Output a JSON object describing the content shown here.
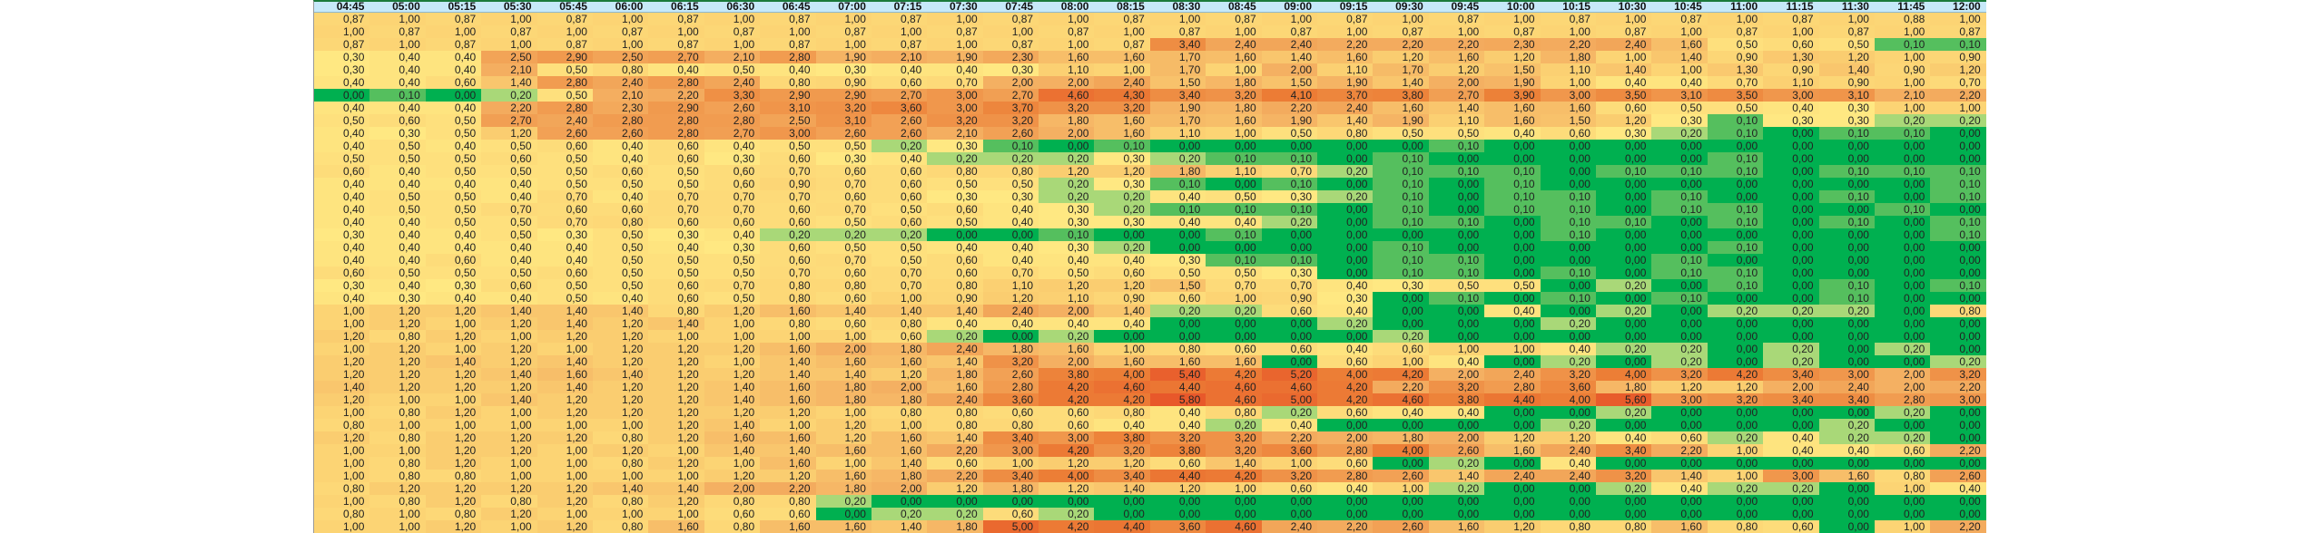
{
  "columns": [
    "04:45",
    "05:00",
    "05:15",
    "05:30",
    "05:45",
    "06:00",
    "06:15",
    "06:30",
    "06:45",
    "07:00",
    "07:15",
    "07:30",
    "07:45",
    "08:00",
    "08:15",
    "08:30",
    "08:45",
    "09:00",
    "09:15",
    "09:30",
    "09:45",
    "10:00",
    "10:15",
    "10:30",
    "10:45",
    "11:00",
    "11:15",
    "11:30",
    "11:45",
    "12:00"
  ],
  "rows": [
    [
      "0,87",
      "1,00",
      "0,87",
      "1,00",
      "0,87",
      "1,00",
      "0,87",
      "1,00",
      "0,87",
      "1,00",
      "0,87",
      "1,00",
      "0,87",
      "1,00",
      "0,87",
      "1,00",
      "0,87",
      "1,00",
      "0,87",
      "1,00",
      "0,87",
      "1,00",
      "0,87",
      "1,00",
      "0,87",
      "1,00",
      "0,87",
      "1,00",
      "0,88",
      "1,00"
    ],
    [
      "1,00",
      "0,87",
      "1,00",
      "0,87",
      "1,00",
      "0,87",
      "1,00",
      "0,87",
      "1,00",
      "0,87",
      "1,00",
      "0,87",
      "1,00",
      "0,87",
      "1,00",
      "0,87",
      "1,00",
      "0,87",
      "1,00",
      "0,87",
      "1,00",
      "0,87",
      "1,00",
      "0,87",
      "1,00",
      "0,87",
      "1,00",
      "0,87",
      "1,00",
      "0,87"
    ],
    [
      "0,87",
      "1,00",
      "0,87",
      "1,00",
      "0,87",
      "1,00",
      "0,87",
      "1,00",
      "0,87",
      "1,00",
      "0,87",
      "1,00",
      "0,87",
      "1,00",
      "0,87",
      "3,40",
      "2,40",
      "2,40",
      "2,20",
      "2,20",
      "2,20",
      "2,30",
      "2,20",
      "2,40",
      "1,60",
      "0,50",
      "0,60",
      "0,50",
      "0,10",
      "0,10"
    ],
    [
      "0,30",
      "0,40",
      "0,40",
      "2,50",
      "2,90",
      "2,50",
      "2,70",
      "2,10",
      "2,80",
      "1,90",
      "2,10",
      "1,90",
      "2,30",
      "1,60",
      "1,60",
      "1,70",
      "1,60",
      "1,40",
      "1,60",
      "1,20",
      "1,60",
      "1,20",
      "1,80",
      "1,00",
      "1,40",
      "0,90",
      "1,30",
      "1,20",
      "1,00",
      "0,90"
    ],
    [
      "0,30",
      "0,40",
      "0,40",
      "2,10",
      "0,50",
      "0,80",
      "0,40",
      "0,50",
      "0,40",
      "0,30",
      "0,40",
      "0,40",
      "0,30",
      "1,10",
      "1,00",
      "1,70",
      "1,00",
      "2,00",
      "1,10",
      "1,70",
      "1,20",
      "1,50",
      "1,10",
      "1,40",
      "1,00",
      "1,30",
      "0,90",
      "1,40",
      "0,90",
      "1,20"
    ],
    [
      "0,40",
      "0,40",
      "0,60",
      "1,40",
      "2,80",
      "2,40",
      "2,80",
      "2,40",
      "0,80",
      "0,90",
      "0,60",
      "0,70",
      "2,00",
      "2,00",
      "2,40",
      "1,50",
      "1,80",
      "1,50",
      "1,90",
      "1,40",
      "2,00",
      "1,90",
      "1,00",
      "0,40",
      "0,40",
      "0,70",
      "1,10",
      "0,90",
      "1,00",
      "0,70"
    ],
    [
      "0,00",
      "0,10",
      "0,00",
      "0,20",
      "0,50",
      "2,10",
      "2,20",
      "3,30",
      "2,90",
      "2,90",
      "2,70",
      "3,00",
      "2,70",
      "4,60",
      "4,30",
      "3,40",
      "3,20",
      "4,10",
      "3,70",
      "3,80",
      "2,70",
      "3,90",
      "3,00",
      "3,50",
      "3,10",
      "3,50",
      "3,00",
      "3,10",
      "2,10",
      "2,20"
    ],
    [
      "0,40",
      "0,40",
      "0,40",
      "2,20",
      "2,80",
      "2,30",
      "2,90",
      "2,60",
      "3,10",
      "3,20",
      "3,60",
      "3,00",
      "3,70",
      "3,20",
      "3,20",
      "1,90",
      "1,80",
      "2,20",
      "2,40",
      "1,60",
      "1,40",
      "1,60",
      "1,60",
      "0,60",
      "0,50",
      "0,50",
      "0,40",
      "0,30",
      "1,00",
      "1,00"
    ],
    [
      "0,50",
      "0,60",
      "0,50",
      "2,70",
      "2,40",
      "2,80",
      "2,80",
      "2,80",
      "2,50",
      "3,10",
      "2,60",
      "3,20",
      "3,20",
      "1,80",
      "1,60",
      "1,70",
      "1,60",
      "1,90",
      "1,40",
      "1,90",
      "1,10",
      "1,60",
      "1,50",
      "1,20",
      "0,30",
      "0,10",
      "0,30",
      "0,30",
      "0,20",
      "0,20"
    ],
    [
      "0,40",
      "0,30",
      "0,50",
      "1,20",
      "2,60",
      "2,60",
      "2,80",
      "2,70",
      "3,00",
      "2,60",
      "2,60",
      "2,10",
      "2,60",
      "2,00",
      "1,60",
      "1,10",
      "1,00",
      "0,50",
      "0,80",
      "0,50",
      "0,50",
      "0,40",
      "0,60",
      "0,30",
      "0,20",
      "0,10",
      "0,00",
      "0,10",
      "0,10",
      "0,00"
    ],
    [
      "0,40",
      "0,50",
      "0,40",
      "0,50",
      "0,60",
      "0,40",
      "0,60",
      "0,40",
      "0,50",
      "0,50",
      "0,20",
      "0,30",
      "0,10",
      "0,00",
      "0,10",
      "0,00",
      "0,00",
      "0,00",
      "0,00",
      "0,00",
      "0,10",
      "0,00",
      "0,00",
      "0,00",
      "0,00",
      "0,00",
      "0,00",
      "0,00",
      "0,00",
      "0,00"
    ],
    [
      "0,50",
      "0,50",
      "0,50",
      "0,60",
      "0,50",
      "0,40",
      "0,60",
      "0,30",
      "0,60",
      "0,30",
      "0,40",
      "0,20",
      "0,20",
      "0,20",
      "0,30",
      "0,20",
      "0,10",
      "0,10",
      "0,00",
      "0,10",
      "0,00",
      "0,00",
      "0,00",
      "0,00",
      "0,00",
      "0,10",
      "0,00",
      "0,00",
      "0,00",
      "0,00"
    ],
    [
      "0,60",
      "0,40",
      "0,50",
      "0,50",
      "0,50",
      "0,60",
      "0,50",
      "0,60",
      "0,70",
      "0,60",
      "0,60",
      "0,80",
      "0,80",
      "1,20",
      "1,20",
      "1,80",
      "1,10",
      "0,70",
      "0,20",
      "0,10",
      "0,10",
      "0,10",
      "0,00",
      "0,10",
      "0,10",
      "0,10",
      "0,00",
      "0,10",
      "0,10",
      "0,10"
    ],
    [
      "0,40",
      "0,40",
      "0,40",
      "0,40",
      "0,50",
      "0,50",
      "0,50",
      "0,60",
      "0,90",
      "0,70",
      "0,60",
      "0,50",
      "0,50",
      "0,20",
      "0,30",
      "0,10",
      "0,00",
      "0,10",
      "0,00",
      "0,10",
      "0,00",
      "0,10",
      "0,00",
      "0,00",
      "0,00",
      "0,00",
      "0,00",
      "0,00",
      "0,00",
      "0,10"
    ],
    [
      "0,40",
      "0,50",
      "0,50",
      "0,40",
      "0,70",
      "0,40",
      "0,70",
      "0,70",
      "0,70",
      "0,60",
      "0,60",
      "0,30",
      "0,30",
      "0,20",
      "0,20",
      "0,40",
      "0,50",
      "0,30",
      "0,20",
      "0,10",
      "0,00",
      "0,10",
      "0,10",
      "0,00",
      "0,10",
      "0,00",
      "0,00",
      "0,10",
      "0,00",
      "0,10"
    ],
    [
      "0,40",
      "0,50",
      "0,50",
      "0,70",
      "0,60",
      "0,60",
      "0,70",
      "0,70",
      "0,60",
      "0,70",
      "0,50",
      "0,60",
      "0,40",
      "0,30",
      "0,20",
      "0,10",
      "0,10",
      "0,10",
      "0,00",
      "0,10",
      "0,00",
      "0,10",
      "0,10",
      "0,00",
      "0,10",
      "0,10",
      "0,00",
      "0,00",
      "0,10",
      "0,00"
    ],
    [
      "0,40",
      "0,40",
      "0,50",
      "0,50",
      "0,70",
      "0,80",
      "0,60",
      "0,60",
      "0,60",
      "0,50",
      "0,60",
      "0,50",
      "0,40",
      "0,30",
      "0,30",
      "0,40",
      "0,40",
      "0,20",
      "0,00",
      "0,10",
      "0,10",
      "0,00",
      "0,10",
      "0,10",
      "0,00",
      "0,10",
      "0,00",
      "0,10",
      "0,00",
      "0,10"
    ],
    [
      "0,30",
      "0,40",
      "0,40",
      "0,50",
      "0,30",
      "0,50",
      "0,30",
      "0,40",
      "0,20",
      "0,20",
      "0,20",
      "0,00",
      "0,00",
      "0,10",
      "0,00",
      "0,00",
      "0,10",
      "0,00",
      "0,00",
      "0,00",
      "0,00",
      "0,00",
      "0,10",
      "0,00",
      "0,00",
      "0,00",
      "0,00",
      "0,00",
      "0,00",
      "0,10"
    ],
    [
      "0,40",
      "0,40",
      "0,40",
      "0,40",
      "0,40",
      "0,50",
      "0,40",
      "0,30",
      "0,60",
      "0,50",
      "0,50",
      "0,40",
      "0,40",
      "0,30",
      "0,20",
      "0,00",
      "0,00",
      "0,00",
      "0,00",
      "0,10",
      "0,00",
      "0,00",
      "0,00",
      "0,00",
      "0,00",
      "0,10",
      "0,00",
      "0,00",
      "0,00",
      "0,00"
    ],
    [
      "0,40",
      "0,40",
      "0,60",
      "0,40",
      "0,40",
      "0,50",
      "0,50",
      "0,50",
      "0,60",
      "0,70",
      "0,50",
      "0,60",
      "0,40",
      "0,40",
      "0,40",
      "0,30",
      "0,10",
      "0,10",
      "0,00",
      "0,10",
      "0,10",
      "0,00",
      "0,00",
      "0,00",
      "0,10",
      "0,00",
      "0,00",
      "0,00",
      "0,00",
      "0,00"
    ],
    [
      "0,60",
      "0,50",
      "0,50",
      "0,50",
      "0,60",
      "0,50",
      "0,50",
      "0,50",
      "0,70",
      "0,60",
      "0,70",
      "0,60",
      "0,70",
      "0,50",
      "0,60",
      "0,50",
      "0,50",
      "0,30",
      "0,00",
      "0,10",
      "0,10",
      "0,00",
      "0,10",
      "0,00",
      "0,10",
      "0,10",
      "0,00",
      "0,00",
      "0,00",
      "0,00"
    ],
    [
      "0,30",
      "0,40",
      "0,30",
      "0,60",
      "0,50",
      "0,50",
      "0,60",
      "0,70",
      "0,80",
      "0,80",
      "0,70",
      "0,80",
      "1,10",
      "1,20",
      "1,20",
      "1,50",
      "0,70",
      "0,70",
      "0,40",
      "0,30",
      "0,50",
      "0,50",
      "0,00",
      "0,20",
      "0,00",
      "0,10",
      "0,00",
      "0,10",
      "0,00",
      "0,10"
    ],
    [
      "0,40",
      "0,30",
      "0,40",
      "0,40",
      "0,50",
      "0,40",
      "0,60",
      "0,50",
      "0,80",
      "0,60",
      "1,00",
      "0,90",
      "1,20",
      "1,10",
      "0,90",
      "0,60",
      "1,00",
      "0,90",
      "0,30",
      "0,00",
      "0,10",
      "0,00",
      "0,10",
      "0,00",
      "0,10",
      "0,00",
      "0,00",
      "0,10",
      "0,00",
      "0,00"
    ],
    [
      "1,00",
      "1,20",
      "1,20",
      "1,40",
      "1,40",
      "1,40",
      "0,80",
      "1,20",
      "1,60",
      "1,40",
      "1,40",
      "1,40",
      "2,40",
      "2,00",
      "1,40",
      "0,20",
      "0,20",
      "0,60",
      "0,40",
      "0,00",
      "0,00",
      "0,40",
      "0,00",
      "0,20",
      "0,00",
      "0,20",
      "0,20",
      "0,20",
      "0,00",
      "0,80"
    ],
    [
      "1,00",
      "1,20",
      "1,00",
      "1,20",
      "1,40",
      "1,20",
      "1,40",
      "1,00",
      "0,80",
      "0,60",
      "0,80",
      "0,40",
      "0,40",
      "0,40",
      "0,40",
      "0,00",
      "0,00",
      "0,00",
      "0,20",
      "0,00",
      "0,00",
      "0,00",
      "0,20",
      "0,00",
      "0,00",
      "0,00",
      "0,00",
      "0,00",
      "0,00",
      "0,00"
    ],
    [
      "1,20",
      "0,80",
      "1,20",
      "1,00",
      "1,20",
      "1,20",
      "1,00",
      "1,00",
      "1,00",
      "1,00",
      "0,60",
      "0,20",
      "0,00",
      "0,20",
      "0,00",
      "0,00",
      "0,00",
      "0,00",
      "0,00",
      "0,20",
      "0,00",
      "0,00",
      "0,00",
      "0,00",
      "0,00",
      "0,00",
      "0,00",
      "0,00",
      "0,00",
      "0,00"
    ],
    [
      "1,00",
      "1,20",
      "1,00",
      "1,20",
      "1,00",
      "1,20",
      "1,20",
      "1,20",
      "1,60",
      "2,00",
      "1,80",
      "2,40",
      "1,80",
      "1,60",
      "1,00",
      "0,80",
      "0,60",
      "0,60",
      "0,40",
      "0,60",
      "1,00",
      "1,00",
      "0,40",
      "0,20",
      "0,20",
      "0,00",
      "0,20",
      "0,00",
      "0,20",
      "0,00"
    ],
    [
      "1,20",
      "1,20",
      "1,40",
      "1,20",
      "1,40",
      "1,20",
      "1,20",
      "1,00",
      "1,40",
      "1,60",
      "1,60",
      "1,40",
      "3,20",
      "2,00",
      "1,60",
      "1,60",
      "1,60",
      "0,00",
      "0,60",
      "1,00",
      "0,40",
      "0,00",
      "0,20",
      "0,00",
      "0,20",
      "0,00",
      "0,20",
      "0,00",
      "0,00",
      "0,20"
    ],
    [
      "1,20",
      "1,20",
      "1,20",
      "1,40",
      "1,60",
      "1,40",
      "1,20",
      "1,20",
      "1,40",
      "1,40",
      "1,20",
      "1,80",
      "2,60",
      "3,80",
      "4,00",
      "5,40",
      "4,20",
      "5,20",
      "4,00",
      "4,20",
      "2,00",
      "2,40",
      "3,20",
      "4,00",
      "3,20",
      "4,20",
      "3,40",
      "3,00",
      "2,00",
      "3,20"
    ],
    [
      "1,40",
      "1,20",
      "1,20",
      "1,20",
      "1,40",
      "1,20",
      "1,20",
      "1,40",
      "1,60",
      "1,80",
      "2,00",
      "1,60",
      "2,80",
      "4,20",
      "4,60",
      "4,40",
      "4,60",
      "4,60",
      "4,20",
      "2,20",
      "3,20",
      "2,80",
      "3,60",
      "1,80",
      "1,20",
      "1,20",
      "2,00",
      "2,40",
      "2,00",
      "2,20"
    ],
    [
      "1,20",
      "1,00",
      "1,00",
      "1,40",
      "1,20",
      "1,20",
      "1,20",
      "1,40",
      "1,60",
      "1,80",
      "1,80",
      "2,40",
      "3,60",
      "4,20",
      "4,20",
      "5,80",
      "4,60",
      "5,00",
      "4,20",
      "4,60",
      "3,80",
      "4,40",
      "4,00",
      "5,60",
      "3,00",
      "3,20",
      "3,40",
      "3,40",
      "2,80",
      "3,00"
    ],
    [
      "1,00",
      "0,80",
      "1,20",
      "1,00",
      "1,20",
      "1,20",
      "1,20",
      "1,20",
      "1,20",
      "1,00",
      "0,80",
      "0,80",
      "0,60",
      "0,60",
      "0,80",
      "0,40",
      "0,80",
      "0,20",
      "0,60",
      "0,40",
      "0,40",
      "0,00",
      "0,00",
      "0,20",
      "0,00",
      "0,00",
      "0,00",
      "0,00",
      "0,20",
      "0,00"
    ],
    [
      "0,80",
      "1,00",
      "1,00",
      "1,00",
      "1,00",
      "1,00",
      "1,20",
      "1,40",
      "1,00",
      "1,20",
      "1,00",
      "0,80",
      "0,80",
      "0,60",
      "0,40",
      "0,40",
      "0,20",
      "0,40",
      "0,00",
      "0,00",
      "0,00",
      "0,00",
      "0,20",
      "0,00",
      "0,00",
      "0,00",
      "0,00",
      "0,20",
      "0,00",
      "0,00"
    ],
    [
      "1,20",
      "0,80",
      "1,20",
      "1,20",
      "1,20",
      "0,80",
      "1,20",
      "1,60",
      "1,60",
      "1,20",
      "1,60",
      "1,40",
      "3,40",
      "3,00",
      "3,80",
      "3,20",
      "3,20",
      "2,20",
      "2,00",
      "1,80",
      "2,00",
      "1,20",
      "1,20",
      "0,40",
      "0,60",
      "0,20",
      "0,40",
      "0,20",
      "0,20",
      "0,00"
    ],
    [
      "1,00",
      "1,00",
      "1,20",
      "1,20",
      "1,00",
      "1,20",
      "1,00",
      "1,40",
      "1,40",
      "1,60",
      "1,60",
      "2,20",
      "3,00",
      "4,20",
      "3,20",
      "3,80",
      "3,20",
      "3,60",
      "2,80",
      "4,00",
      "2,60",
      "1,60",
      "2,40",
      "3,40",
      "2,20",
      "1,00",
      "0,40",
      "0,40",
      "0,60",
      "2,20"
    ],
    [
      "1,00",
      "0,80",
      "1,20",
      "1,00",
      "1,00",
      "0,80",
      "1,20",
      "1,00",
      "1,60",
      "1,00",
      "1,40",
      "0,60",
      "1,00",
      "1,20",
      "1,20",
      "0,60",
      "1,40",
      "1,00",
      "0,60",
      "0,00",
      "0,20",
      "0,00",
      "0,40",
      "0,00",
      "0,00",
      "0,00",
      "0,00",
      "0,00",
      "0,00",
      "0,00"
    ],
    [
      "1,00",
      "0,80",
      "0,80",
      "1,00",
      "1,00",
      "1,00",
      "1,00",
      "1,20",
      "1,20",
      "1,60",
      "1,80",
      "2,20",
      "3,40",
      "4,00",
      "3,40",
      "4,40",
      "4,20",
      "3,20",
      "2,80",
      "2,60",
      "1,40",
      "2,40",
      "2,40",
      "3,20",
      "1,40",
      "1,00",
      "3,00",
      "1,60",
      "0,80",
      "2,60"
    ],
    [
      "0,80",
      "1,20",
      "1,20",
      "1,20",
      "1,20",
      "1,40",
      "1,40",
      "2,00",
      "2,20",
      "1,80",
      "2,00",
      "1,20",
      "1,80",
      "1,20",
      "1,40",
      "1,20",
      "1,00",
      "0,60",
      "0,40",
      "1,00",
      "0,20",
      "0,00",
      "0,00",
      "0,20",
      "0,40",
      "0,20",
      "0,20",
      "0,00",
      "1,00",
      "0,40"
    ],
    [
      "1,00",
      "0,80",
      "1,20",
      "0,80",
      "1,20",
      "0,80",
      "1,20",
      "0,80",
      "0,80",
      "0,20",
      "0,00",
      "0,00",
      "0,00",
      "0,00",
      "0,00",
      "0,00",
      "0,00",
      "0,00",
      "0,00",
      "0,00",
      "0,00",
      "0,00",
      "0,00",
      "0,00",
      "0,00",
      "0,00",
      "0,00",
      "0,00",
      "0,00",
      "0,00"
    ],
    [
      "0,80",
      "1,00",
      "0,80",
      "1,20",
      "1,00",
      "1,00",
      "1,00",
      "0,60",
      "0,60",
      "0,00",
      "0,20",
      "0,20",
      "0,60",
      "0,20",
      "0,00",
      "0,00",
      "0,00",
      "0,00",
      "0,00",
      "0,00",
      "0,00",
      "0,00",
      "0,00",
      "0,00",
      "0,00",
      "0,00",
      "0,00",
      "0,00",
      "0,00",
      "0,00"
    ],
    [
      "1,00",
      "1,00",
      "1,20",
      "1,00",
      "1,20",
      "0,80",
      "1,60",
      "0,80",
      "1,60",
      "1,60",
      "1,40",
      "1,80",
      "5,00",
      "4,20",
      "4,40",
      "3,60",
      "4,60",
      "2,40",
      "2,20",
      "2,60",
      "1,60",
      "1,20",
      "0,80",
      "0,80",
      "1,60",
      "0,80",
      "0,60",
      "0,00",
      "1,00",
      "2,20"
    ]
  ],
  "colors": {
    "header_bg": "#c6e9f9",
    "header_border": "#1a7a3a",
    "scale_zero": "#00b050",
    "scale_low": "#a9d878",
    "scale_mid": "#ffe882",
    "scale_one": "#fcd474",
    "scale_high": "#e8582a"
  }
}
